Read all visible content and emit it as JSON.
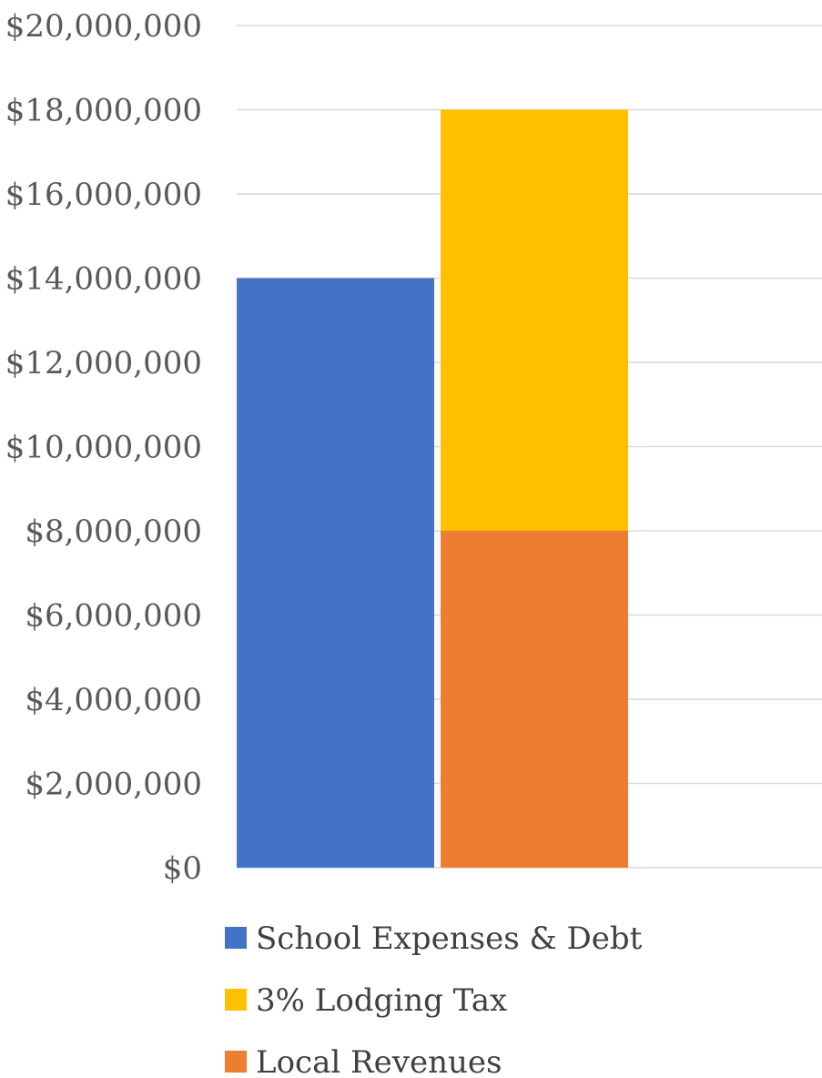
{
  "chart_data": {
    "type": "bar",
    "stacked": true,
    "categories": [
      "",
      ""
    ],
    "series": [
      {
        "name": "School Expenses & Debt",
        "color": "#4472C4",
        "values": [
          14000000,
          0
        ]
      },
      {
        "name": "Local Revenues",
        "color": "#ED7D31",
        "values": [
          0,
          8000000
        ]
      },
      {
        "name": "3% Lodging Tax",
        "color": "#FFC000",
        "values": [
          0,
          10000000
        ]
      }
    ],
    "legend": {
      "position": "bottom",
      "order": [
        "School Expenses & Debt",
        "3% Lodging Tax",
        "Local Revenues"
      ]
    },
    "title": "",
    "xlabel": "",
    "ylabel": "",
    "ylim": [
      0,
      20000000
    ],
    "yticks": [
      0,
      2000000,
      4000000,
      6000000,
      8000000,
      10000000,
      12000000,
      14000000,
      16000000,
      18000000,
      20000000
    ],
    "ytick_labels": [
      "$0",
      "$2,000,000",
      "$4,000,000",
      "$6,000,000",
      "$8,000,000",
      "$10,000,000",
      "$12,000,000",
      "$14,000,000",
      "$16,000,000",
      "$18,000,000",
      "$20,000,000"
    ],
    "grid": true
  }
}
